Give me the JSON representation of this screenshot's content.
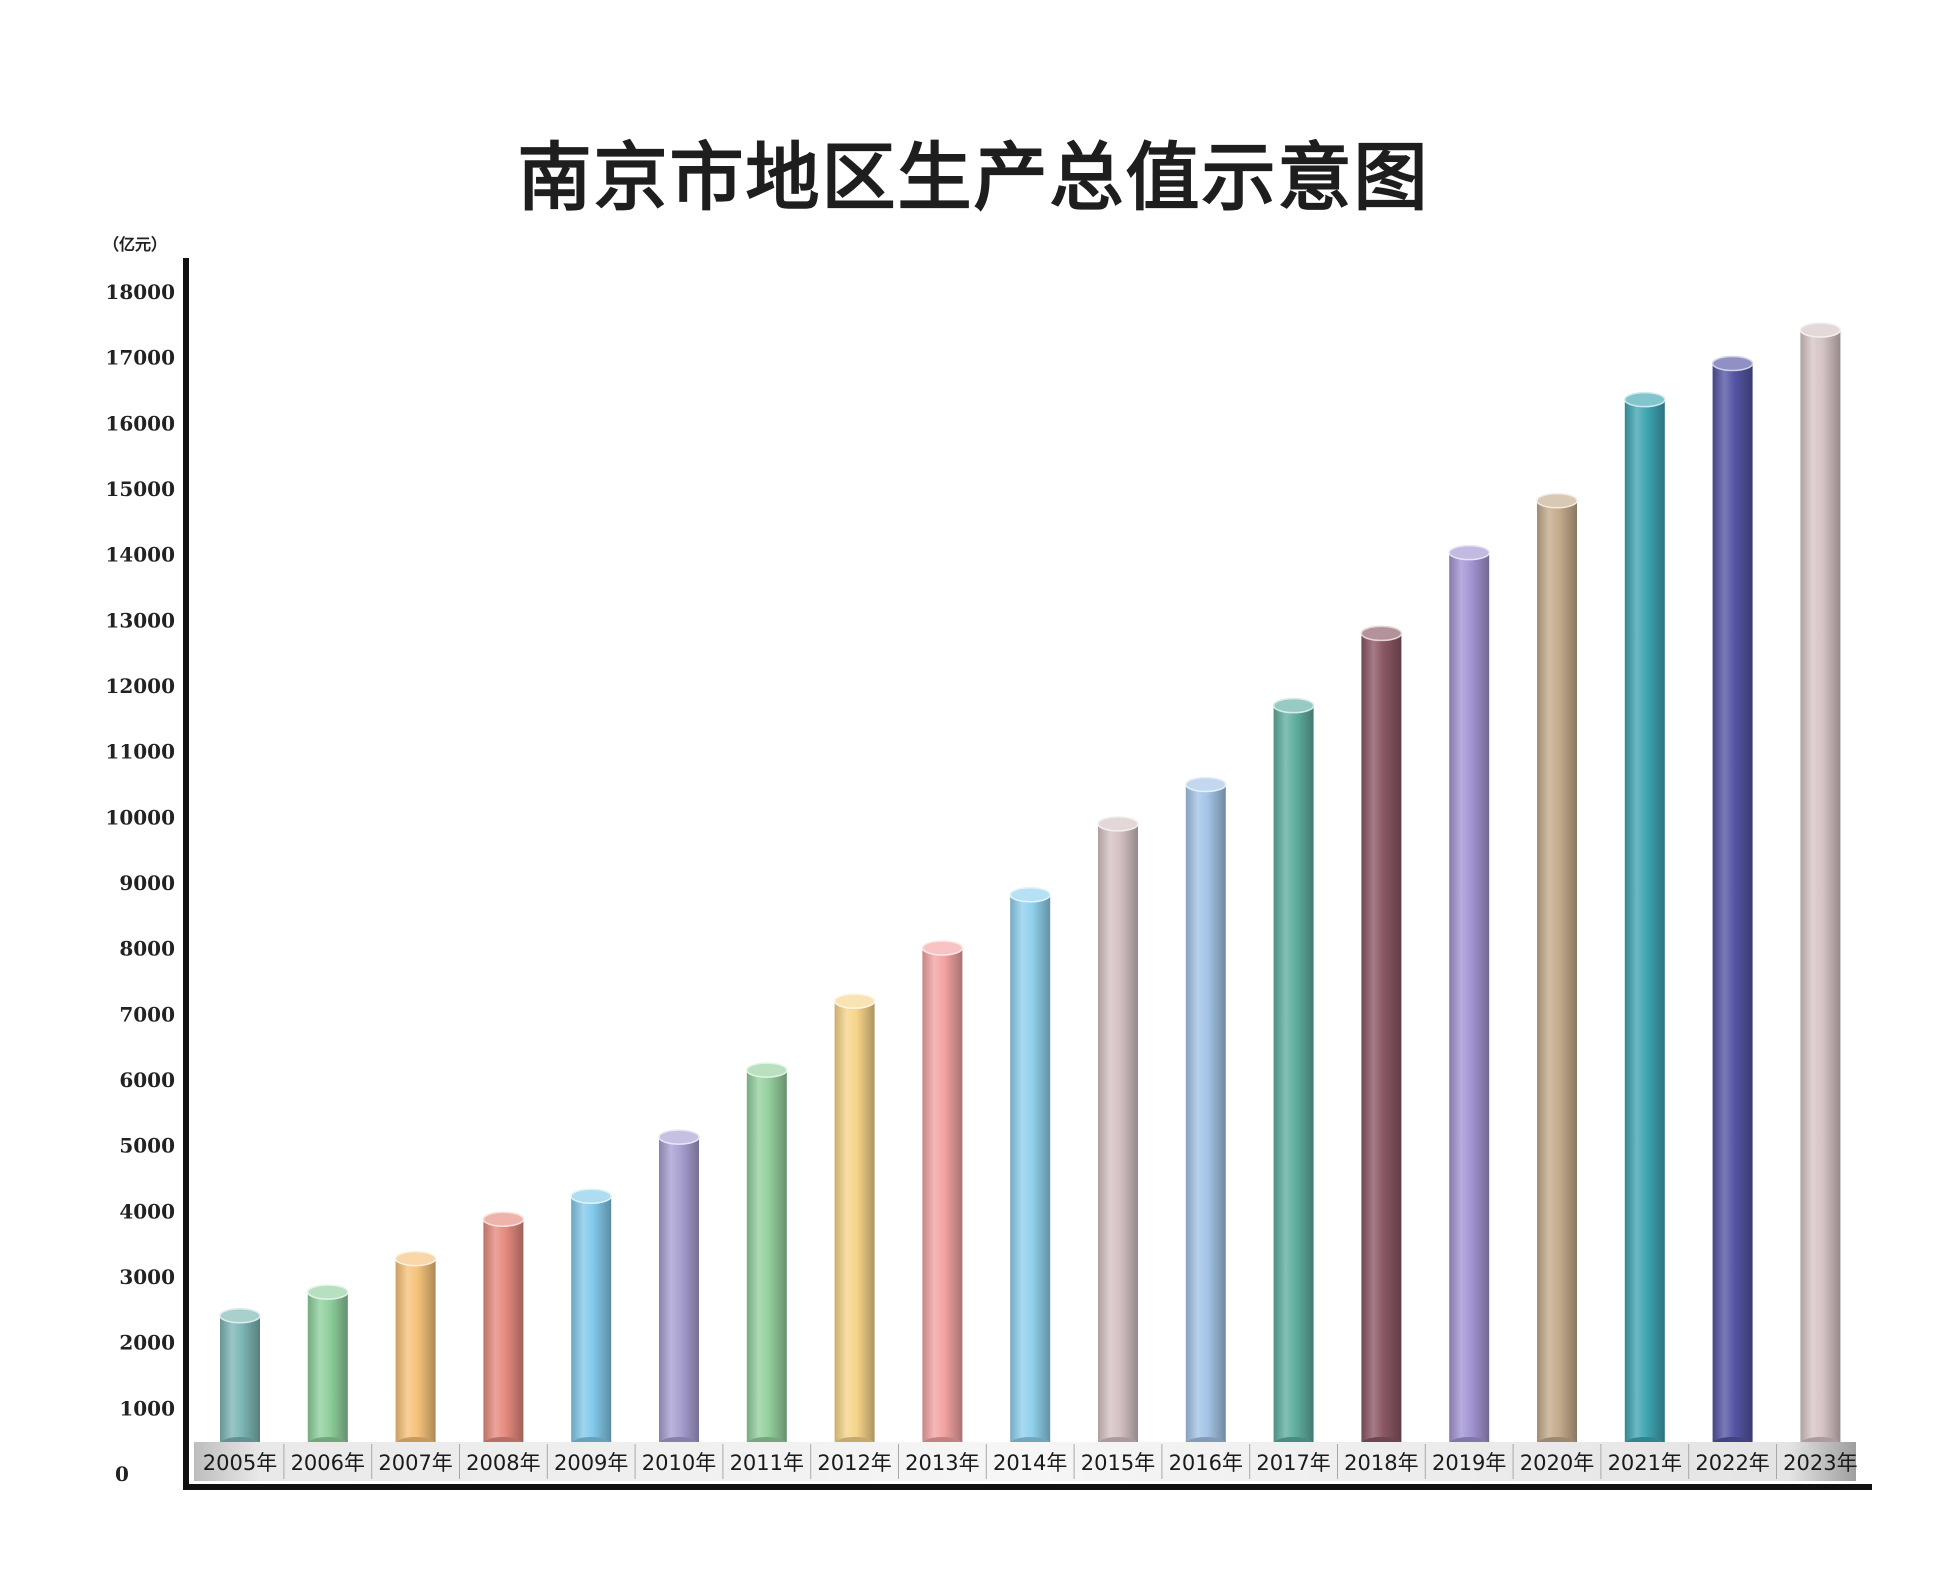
{
  "chart_data": {
    "type": "bar",
    "title": "南京市地区生产总值示意图",
    "ylabel": "（亿元）",
    "xlabel": "",
    "ylim": [
      0,
      18000
    ],
    "yticks": [
      0,
      1000,
      2000,
      3000,
      4000,
      5000,
      6000,
      7000,
      8000,
      9000,
      10000,
      11000,
      12000,
      13000,
      14000,
      15000,
      16000,
      17000,
      18000
    ],
    "categories": [
      "2005年",
      "2006年",
      "2007年",
      "2008年",
      "2009年",
      "2010年",
      "2011年",
      "2012年",
      "2013年",
      "2014年",
      "2015年",
      "2016年",
      "2017年",
      "2018年",
      "2019年",
      "2020年",
      "2021年",
      "2022年",
      "2023年"
    ],
    "values": [
      2410,
      2770,
      3280,
      3880,
      4230,
      5130,
      6150,
      7200,
      8010,
      8820,
      9900,
      10500,
      11700,
      12800,
      14030,
      14820,
      16360,
      16910,
      17420
    ],
    "colors": [
      "#7cb6b4",
      "#8fcf9c",
      "#f6c27a",
      "#e58a7e",
      "#82c9ea",
      "#a89fd2",
      "#94cf9d",
      "#f6d489",
      "#f2a3a2",
      "#8fd0ec",
      "#d4c2c3",
      "#a3c3e6",
      "#5fae9f",
      "#8a5764",
      "#a395d3",
      "#c4ab8c",
      "#3fa5b2",
      "#5454a4",
      "#d6c4c5"
    ],
    "grid": false,
    "legend": "none"
  }
}
